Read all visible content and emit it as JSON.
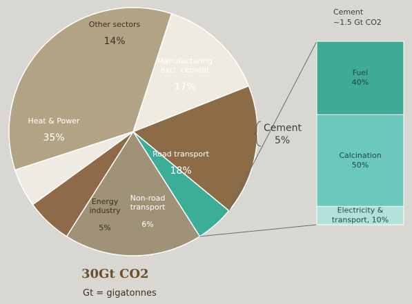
{
  "chart_data": [
    {
      "type": "pie",
      "title": "",
      "total_label": "30Gt CO2",
      "unit_note": "Gt = gigatonnes",
      "slices": [
        {
          "name": "Heat & Power",
          "value": 35,
          "label": "35%",
          "color": "#b3a385"
        },
        {
          "name": "Other sectors",
          "value": 14,
          "label": "14%",
          "color": "#f0ebe0"
        },
        {
          "name": "Manufacturing excl. cement",
          "value": 17,
          "label": "17%",
          "color": "#8c6b47"
        },
        {
          "name": "Cement",
          "value": 5,
          "label": "5%",
          "color": "#3cae98"
        },
        {
          "name": "Road transport",
          "value": 18,
          "label": "18%",
          "color": "#a09276"
        },
        {
          "name": "Non-road transport",
          "value": 6,
          "label": "6%",
          "color": "#8f6a48"
        },
        {
          "name": "Energy industry",
          "value": 5,
          "label": "5%",
          "color": "#eeebe5"
        }
      ]
    },
    {
      "type": "bar",
      "title": "Cement",
      "subtitle": "~1.5 Gt CO2",
      "stacked": true,
      "segments": [
        {
          "name": "Fuel",
          "value": 40,
          "label": "40%",
          "color": "#3faa96"
        },
        {
          "name": "Calcination",
          "value": 50,
          "label": "50%",
          "color": "#6cc8bd"
        },
        {
          "name": "Electricity & transport",
          "value": 10,
          "label": "10%",
          "color": "#b2e2da"
        }
      ]
    }
  ]
}
